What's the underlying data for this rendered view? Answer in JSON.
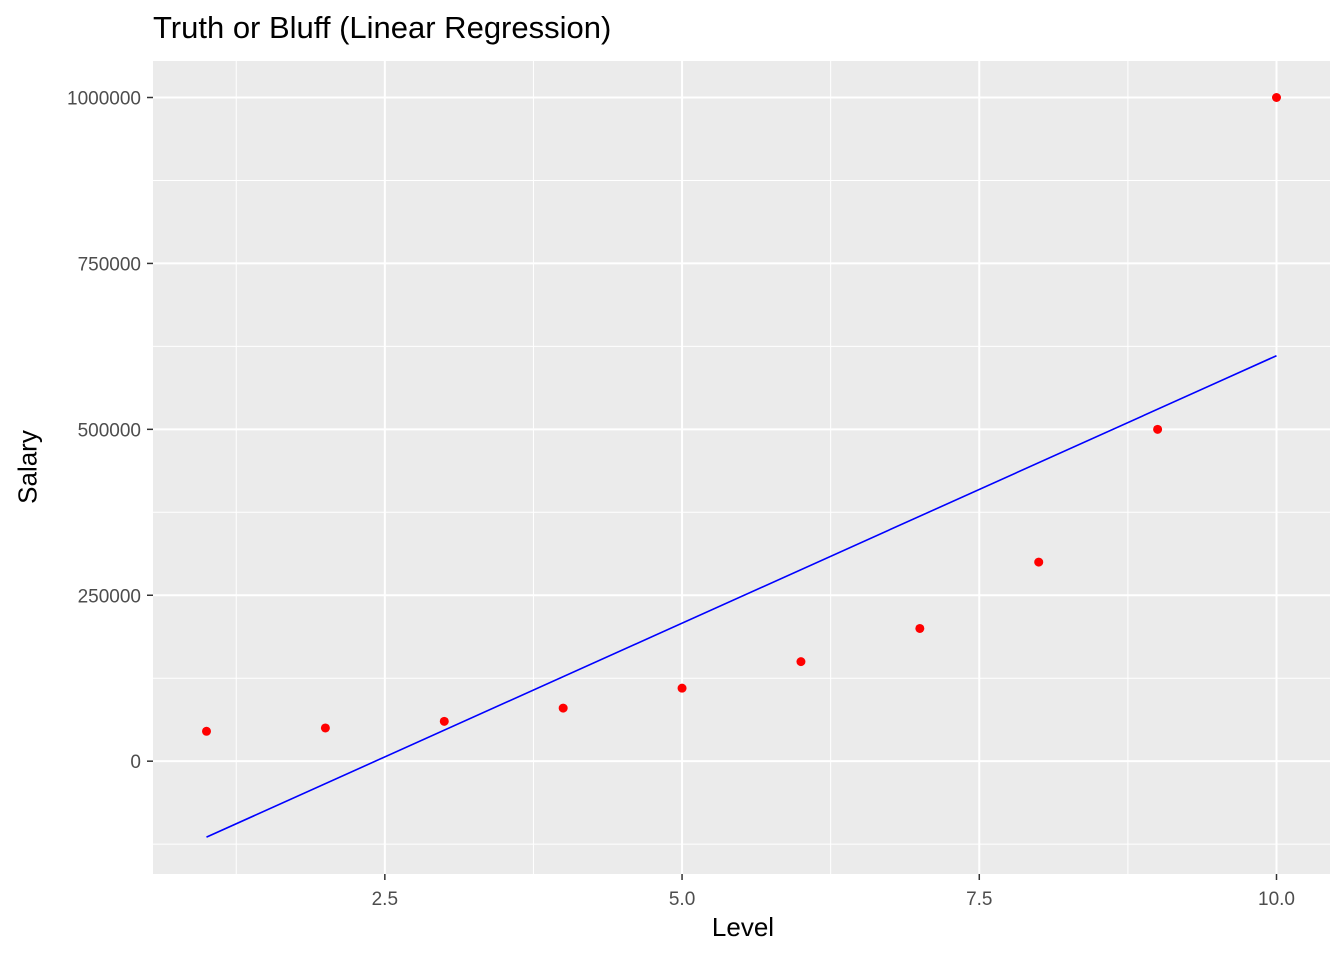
{
  "chart_data": {
    "type": "scatter",
    "title": "Truth or Bluff (Linear Regression)",
    "xlabel": "Level",
    "ylabel": "Salary",
    "xlim": [
      0.55,
      10.45
    ],
    "ylim": [
      -170000,
      1055000
    ],
    "x_ticks": [
      2.5,
      5.0,
      7.5,
      10.0
    ],
    "x_tick_labels": [
      "2.5",
      "5.0",
      "7.5",
      "10.0"
    ],
    "y_ticks": [
      0,
      250000,
      500000,
      750000,
      1000000
    ],
    "y_tick_labels": [
      "0",
      "250000",
      "500000",
      "750000",
      "1000000"
    ],
    "grid": true,
    "background": "#ebebeb",
    "series": [
      {
        "type": "scatter",
        "color": "#ff0000",
        "x": [
          1,
          2,
          3,
          4,
          5,
          6,
          7,
          8,
          9,
          10
        ],
        "y": [
          45000,
          50000,
          60000,
          80000,
          110000,
          150000,
          200000,
          300000,
          500000,
          1000000
        ]
      },
      {
        "type": "line",
        "color": "#0000ff",
        "x": [
          1,
          10
        ],
        "y": [
          -114454,
          610939
        ]
      }
    ]
  }
}
